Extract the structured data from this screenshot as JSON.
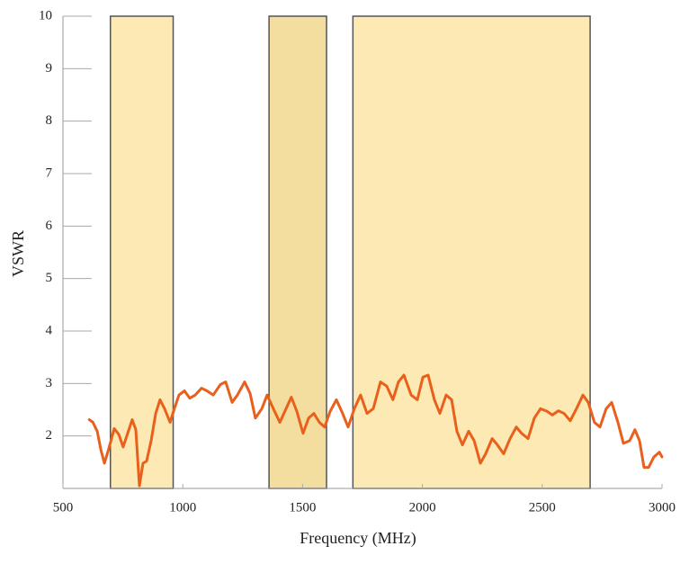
{
  "chart_data": {
    "type": "line",
    "x_label": "Frequency (MHz)",
    "y_label": "VSWR",
    "xlim": [
      500,
      3000
    ],
    "xticks": [
      500,
      1000,
      1500,
      2000,
      2500,
      3000
    ],
    "ylim": [
      1,
      10
    ],
    "yticks": [
      2,
      3,
      4,
      5,
      6,
      7,
      8,
      9,
      10
    ],
    "grid": false,
    "bands": [
      {
        "x": [
          698,
          960
        ],
        "color": "#fde9b4"
      },
      {
        "x": [
          1360,
          1600
        ],
        "color": "#f3dd9f"
      },
      {
        "x": [
          1710,
          2700
        ],
        "color": "#fde9b4"
      }
    ],
    "series": [
      {
        "color": "#e8601c",
        "x": [
          610,
          625,
          643,
          658,
          673,
          690,
          714,
          733,
          751,
          770,
          789,
          804,
          819,
          834,
          849,
          868,
          887,
          905,
          924,
          947,
          965,
          984,
          1007,
          1029,
          1052,
          1078,
          1101,
          1127,
          1157,
          1179,
          1206,
          1228,
          1258,
          1281,
          1303,
          1330,
          1352,
          1378,
          1405,
          1431,
          1453,
          1476,
          1502,
          1525,
          1547,
          1570,
          1592,
          1615,
          1641,
          1667,
          1690,
          1716,
          1742,
          1769,
          1795,
          1825,
          1851,
          1877,
          1900,
          1923,
          1953,
          1979,
          2002,
          2024,
          2050,
          2073,
          2099,
          2122,
          2144,
          2167,
          2193,
          2216,
          2242,
          2264,
          2291,
          2313,
          2339,
          2366,
          2392,
          2414,
          2441,
          2467,
          2493,
          2520,
          2542,
          2568,
          2591,
          2617,
          2643,
          2670,
          2692,
          2718,
          2741,
          2767,
          2790,
          2816,
          2839,
          2865,
          2887,
          2906,
          2925,
          2944,
          2966,
          2989,
          3000
        ],
        "values": [
          2.31,
          2.26,
          2.09,
          1.74,
          1.48,
          1.74,
          2.14,
          2.03,
          1.79,
          2.05,
          2.31,
          2.12,
          1.05,
          1.48,
          1.52,
          1.91,
          2.43,
          2.69,
          2.52,
          2.26,
          2.52,
          2.78,
          2.86,
          2.72,
          2.78,
          2.91,
          2.86,
          2.78,
          2.98,
          3.03,
          2.64,
          2.78,
          3.03,
          2.81,
          2.34,
          2.52,
          2.78,
          2.52,
          2.26,
          2.52,
          2.74,
          2.47,
          2.05,
          2.34,
          2.43,
          2.26,
          2.17,
          2.47,
          2.69,
          2.43,
          2.17,
          2.52,
          2.78,
          2.43,
          2.52,
          3.03,
          2.95,
          2.69,
          3.03,
          3.16,
          2.78,
          2.69,
          3.12,
          3.16,
          2.69,
          2.43,
          2.78,
          2.69,
          2.09,
          1.83,
          2.09,
          1.91,
          1.48,
          1.66,
          1.95,
          1.83,
          1.66,
          1.95,
          2.17,
          2.05,
          1.95,
          2.34,
          2.52,
          2.47,
          2.4,
          2.48,
          2.43,
          2.29,
          2.52,
          2.78,
          2.64,
          2.26,
          2.17,
          2.52,
          2.64,
          2.26,
          1.86,
          1.91,
          2.12,
          1.91,
          1.4,
          1.4,
          1.6,
          1.69,
          1.6
        ]
      }
    ]
  }
}
